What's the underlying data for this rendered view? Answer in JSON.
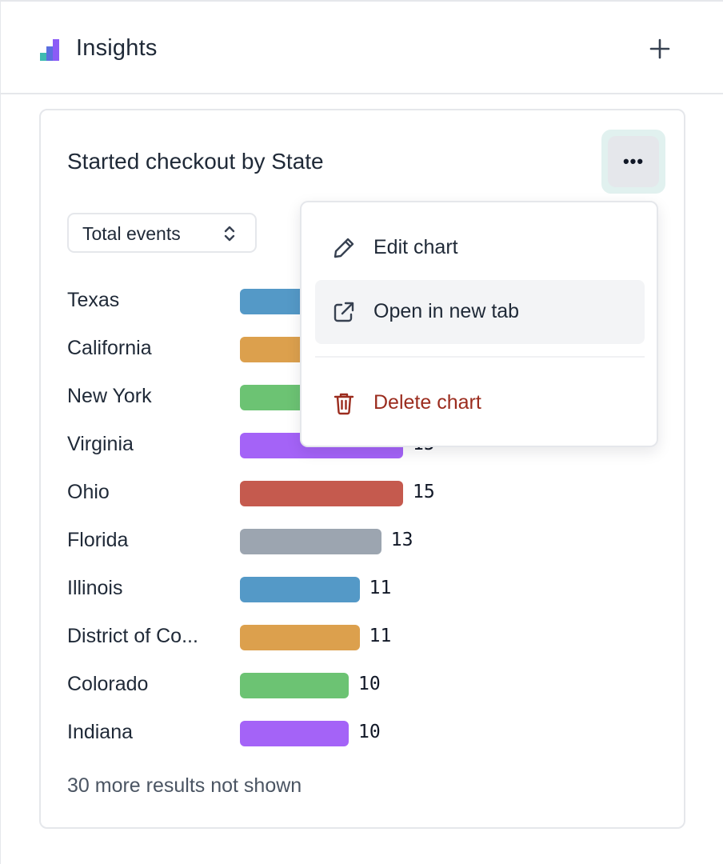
{
  "header": {
    "title": "Insights",
    "icon": "bar-chart-icon",
    "add_icon": "plus-icon"
  },
  "card": {
    "title": "Started checkout by State",
    "more_icon": "more-horizontal-icon",
    "more_label": "•••",
    "metric_select": {
      "selected": "Total events",
      "icon": "chevron-up-down-icon"
    },
    "footer_note": "30 more results not shown"
  },
  "menu": {
    "items": [
      {
        "label": "Edit chart",
        "icon": "pencil-icon",
        "active": false,
        "danger": false
      },
      {
        "label": "Open in new tab",
        "icon": "external-link-icon",
        "active": true,
        "danger": false
      },
      {
        "label": "Delete chart",
        "icon": "trash-icon",
        "active": false,
        "danger": true
      }
    ]
  },
  "colors": {
    "blue": "#5499c7",
    "orange": "#dca04d",
    "green": "#6cc373",
    "purple": "#a463f7",
    "red": "#c55a4e",
    "gray": "#9ca5b0",
    "danger": "#9b2c1e",
    "logo_teal": "#3ebbb1",
    "logo_blue": "#5b6fe0",
    "logo_purple": "#8b5cf6"
  },
  "chart_data": {
    "type": "bar",
    "orientation": "horizontal",
    "categories": [
      "Texas",
      "California",
      "New York",
      "Virginia",
      "Ohio",
      "Florida",
      "Illinois",
      "District of Co...",
      "Colorado",
      "Indiana"
    ],
    "values": [
      null,
      null,
      null,
      15,
      15,
      13,
      11,
      11,
      10,
      10
    ],
    "value_labels": [
      "",
      "",
      "",
      "15",
      "15",
      "13",
      "11",
      "11",
      "10",
      "10"
    ],
    "bar_colors": [
      "#5499c7",
      "#dca04d",
      "#6cc373",
      "#a463f7",
      "#c55a4e",
      "#9ca5b0",
      "#5499c7",
      "#dca04d",
      "#6cc373",
      "#a463f7"
    ],
    "title": "Started checkout by State"
  }
}
